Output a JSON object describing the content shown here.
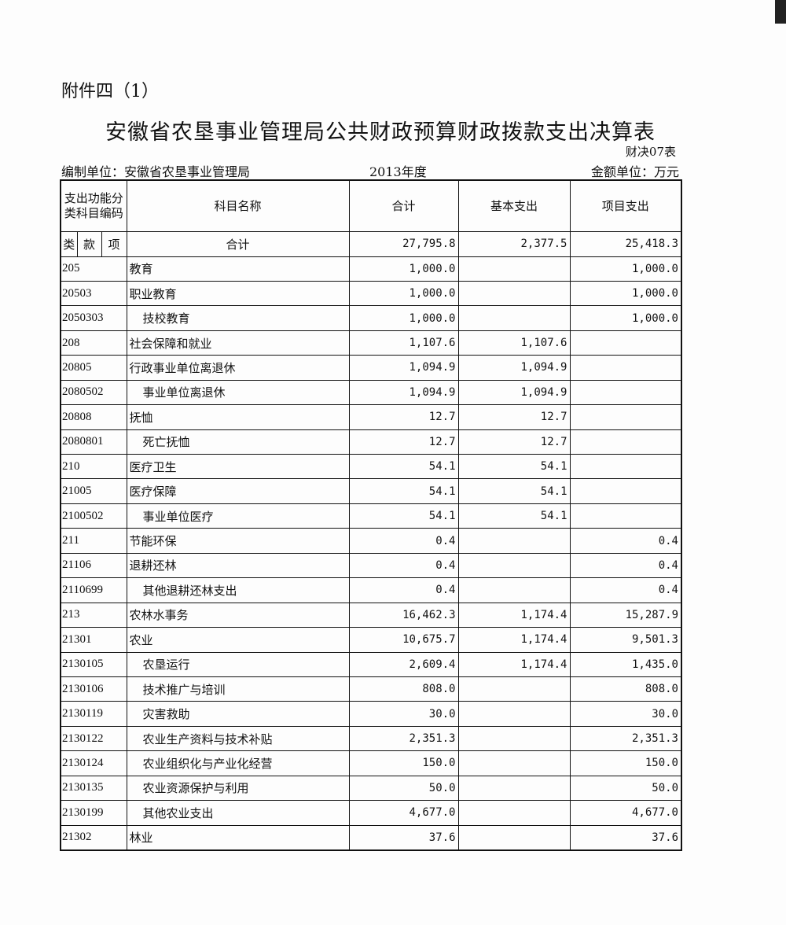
{
  "attachment": "附件四（1）",
  "title": "安徽省农垦事业管理局公共财政预算财政拨款支出决算表",
  "form_no": "财决07表",
  "compiler": "编制单位：安徽省农垦事业管理局",
  "year": "2013年度",
  "money_unit": "金额单位：万元",
  "header": {
    "code": "支出功能分类科目编码",
    "name": "科目名称",
    "total": "合计",
    "basic": "基本支出",
    "project": "项目支出",
    "lei": "类",
    "kuan": "款",
    "xiang": "项"
  },
  "total_row": {
    "name": "合计",
    "total": "27,795.8",
    "basic": "2,377.5",
    "project": "25,418.3"
  },
  "rows": [
    {
      "code": "205",
      "name": "教育",
      "level": 1,
      "total": "1,000.0",
      "basic": "",
      "project": "1,000.0"
    },
    {
      "code": "20503",
      "name": "职业教育",
      "level": 2,
      "total": "1,000.0",
      "basic": "",
      "project": "1,000.0"
    },
    {
      "code": "2050303",
      "name": "技校教育",
      "level": 3,
      "total": "1,000.0",
      "basic": "",
      "project": "1,000.0"
    },
    {
      "code": "208",
      "name": "社会保障和就业",
      "level": 1,
      "total": "1,107.6",
      "basic": "1,107.6",
      "project": ""
    },
    {
      "code": "20805",
      "name": "行政事业单位离退休",
      "level": 2,
      "total": "1,094.9",
      "basic": "1,094.9",
      "project": ""
    },
    {
      "code": "2080502",
      "name": "事业单位离退休",
      "level": 3,
      "total": "1,094.9",
      "basic": "1,094.9",
      "project": ""
    },
    {
      "code": "20808",
      "name": "抚恤",
      "level": 2,
      "total": "12.7",
      "basic": "12.7",
      "project": ""
    },
    {
      "code": "2080801",
      "name": "死亡抚恤",
      "level": 3,
      "total": "12.7",
      "basic": "12.7",
      "project": ""
    },
    {
      "code": "210",
      "name": "医疗卫生",
      "level": 1,
      "total": "54.1",
      "basic": "54.1",
      "project": ""
    },
    {
      "code": "21005",
      "name": "医疗保障",
      "level": 2,
      "total": "54.1",
      "basic": "54.1",
      "project": ""
    },
    {
      "code": "2100502",
      "name": "事业单位医疗",
      "level": 3,
      "total": "54.1",
      "basic": "54.1",
      "project": ""
    },
    {
      "code": "211",
      "name": "节能环保",
      "level": 1,
      "total": "0.4",
      "basic": "",
      "project": "0.4"
    },
    {
      "code": "21106",
      "name": "退耕还林",
      "level": 2,
      "total": "0.4",
      "basic": "",
      "project": "0.4"
    },
    {
      "code": "2110699",
      "name": "其他退耕还林支出",
      "level": 3,
      "total": "0.4",
      "basic": "",
      "project": "0.4"
    },
    {
      "code": "213",
      "name": "农林水事务",
      "level": 1,
      "total": "16,462.3",
      "basic": "1,174.4",
      "project": "15,287.9"
    },
    {
      "code": "21301",
      "name": "农业",
      "level": 2,
      "total": "10,675.7",
      "basic": "1,174.4",
      "project": "9,501.3"
    },
    {
      "code": "2130105",
      "name": "农垦运行",
      "level": 3,
      "total": "2,609.4",
      "basic": "1,174.4",
      "project": "1,435.0"
    },
    {
      "code": "2130106",
      "name": "技术推广与培训",
      "level": 3,
      "total": "808.0",
      "basic": "",
      "project": "808.0"
    },
    {
      "code": "2130119",
      "name": "灾害救助",
      "level": 3,
      "total": "30.0",
      "basic": "",
      "project": "30.0"
    },
    {
      "code": "2130122",
      "name": "农业生产资料与技术补贴",
      "level": 3,
      "total": "2,351.3",
      "basic": "",
      "project": "2,351.3"
    },
    {
      "code": "2130124",
      "name": "农业组织化与产业化经营",
      "level": 3,
      "total": "150.0",
      "basic": "",
      "project": "150.0"
    },
    {
      "code": "2130135",
      "name": "农业资源保护与利用",
      "level": 3,
      "total": "50.0",
      "basic": "",
      "project": "50.0"
    },
    {
      "code": "2130199",
      "name": "其他农业支出",
      "level": 3,
      "total": "4,677.0",
      "basic": "",
      "project": "4,677.0"
    },
    {
      "code": "21302",
      "name": "林业",
      "level": 2,
      "total": "37.6",
      "basic": "",
      "project": "37.6"
    }
  ]
}
